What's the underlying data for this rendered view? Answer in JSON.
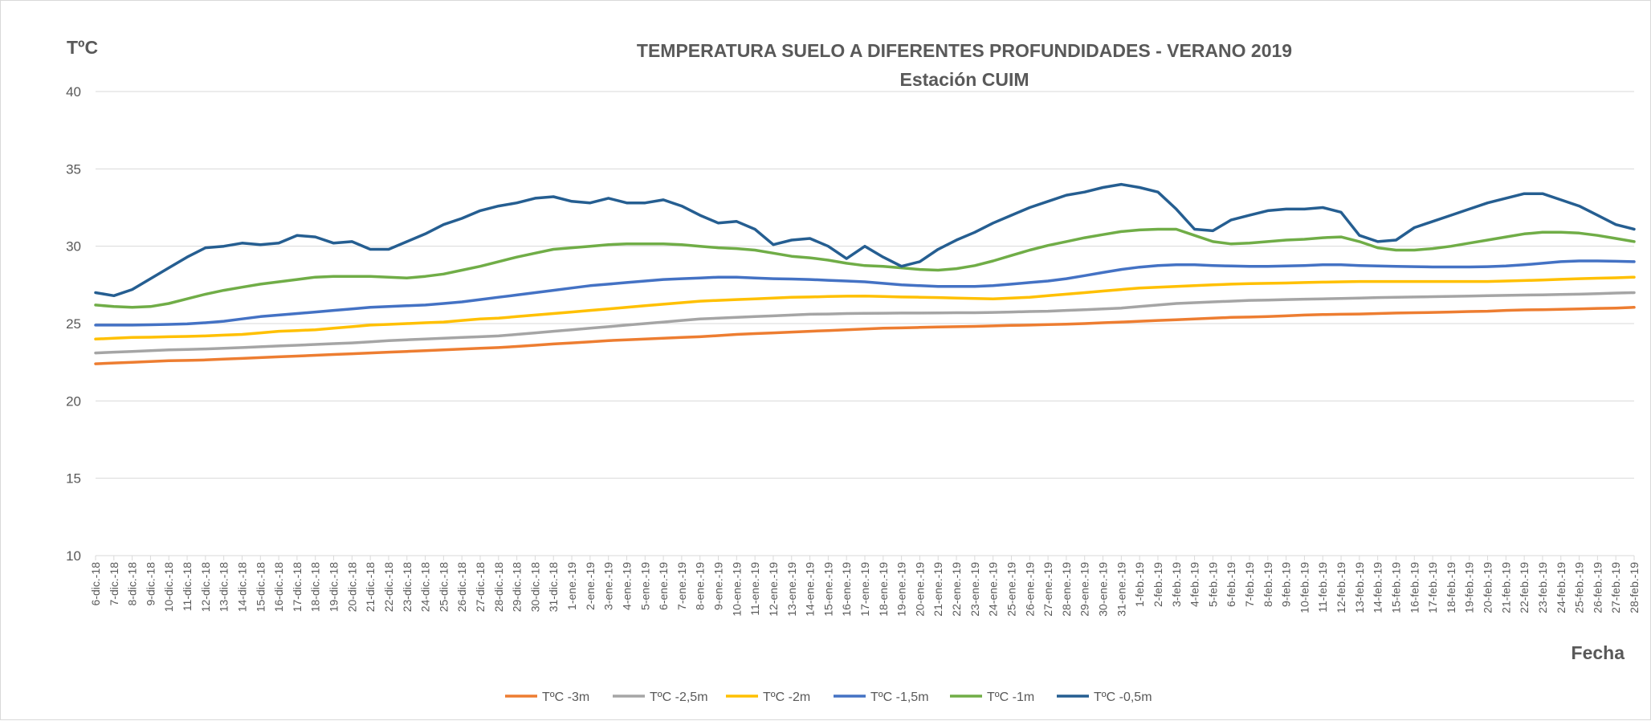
{
  "chart_data": {
    "type": "line",
    "title": "TEMPERATURA  SUELO A DIFERENTES PROFUNDIDADES -  VERANO 2019",
    "subtitle": "Estación CUIM",
    "ylabel": "TºC",
    "xlabel": "Fecha",
    "ylim": [
      10,
      40
    ],
    "yticks": [
      10,
      15,
      20,
      25,
      30,
      35,
      40
    ],
    "grid": true,
    "legend_position": "bottom",
    "categories": [
      "6-dic.-18",
      "7-dic.-18",
      "8-dic.-18",
      "9-dic.-18",
      "10-dic.-18",
      "11-dic.-18",
      "12-dic.-18",
      "13-dic.-18",
      "14-dic.-18",
      "15-dic.-18",
      "16-dic.-18",
      "17-dic.-18",
      "18-dic.-18",
      "19-dic.-18",
      "20-dic.-18",
      "21-dic.-18",
      "22-dic.-18",
      "23-dic.-18",
      "24-dic.-18",
      "25-dic.-18",
      "26-dic.-18",
      "27-dic.-18",
      "28-dic.-18",
      "29-dic.-18",
      "30-dic.-18",
      "31-dic.-18",
      "1-ene.-19",
      "2-ene.-19",
      "3-ene.-19",
      "4-ene.-19",
      "5-ene.-19",
      "6-ene.-19",
      "7-ene.-19",
      "8-ene.-19",
      "9-ene.-19",
      "10-ene.-19",
      "11-ene.-19",
      "12-ene.-19",
      "13-ene.-19",
      "14-ene.-19",
      "15-ene.-19",
      "16-ene.-19",
      "17-ene.-19",
      "18-ene.-19",
      "19-ene.-19",
      "20-ene.-19",
      "21-ene.-19",
      "22-ene.-19",
      "23-ene.-19",
      "24-ene.-19",
      "25-ene.-19",
      "26-ene.-19",
      "27-ene.-19",
      "28-ene.-19",
      "29-ene.-19",
      "30-ene.-19",
      "31-ene.-19",
      "1-feb.-19",
      "2-feb.-19",
      "3-feb.-19",
      "4-feb.-19",
      "5-feb.-19",
      "6-feb.-19",
      "7-feb.-19",
      "8-feb.-19",
      "9-feb.-19",
      "10-feb.-19",
      "11-feb.-19",
      "12-feb.-19",
      "13-feb.-19",
      "14-feb.-19",
      "15-feb.-19",
      "16-feb.-19",
      "17-feb.-19",
      "18-feb.-19",
      "19-feb.-19",
      "20-feb.-19",
      "21-feb.-19",
      "22-feb.-19",
      "23-feb.-19",
      "24-feb.-19",
      "25-feb.-19",
      "26-feb.-19",
      "27-feb.-19",
      "28-feb.-19"
    ],
    "series": [
      {
        "name": "TºC -3m",
        "color": "#ED7D31",
        "values": [
          22.4,
          22.45,
          22.5,
          22.55,
          22.6,
          22.62,
          22.65,
          22.7,
          22.75,
          22.8,
          22.85,
          22.9,
          22.95,
          23.0,
          23.05,
          23.1,
          23.15,
          23.2,
          23.25,
          23.3,
          23.35,
          23.4,
          23.45,
          23.52,
          23.6,
          23.68,
          23.75,
          23.82,
          23.9,
          23.95,
          24.0,
          24.05,
          24.1,
          24.15,
          24.22,
          24.3,
          24.35,
          24.4,
          24.45,
          24.5,
          24.55,
          24.6,
          24.65,
          24.7,
          24.72,
          24.75,
          24.78,
          24.8,
          24.82,
          24.85,
          24.88,
          24.9,
          24.93,
          24.96,
          25.0,
          25.05,
          25.1,
          25.15,
          25.2,
          25.25,
          25.3,
          25.35,
          25.4,
          25.42,
          25.45,
          25.5,
          25.55,
          25.58,
          25.6,
          25.62,
          25.65,
          25.68,
          25.7,
          25.72,
          25.75,
          25.78,
          25.8,
          25.85,
          25.88,
          25.9,
          25.92,
          25.95,
          25.98,
          26.0,
          26.05
        ]
      },
      {
        "name": "TºC -2,5m",
        "color": "#A5A5A5",
        "values": [
          23.1,
          23.15,
          23.2,
          23.25,
          23.3,
          23.33,
          23.36,
          23.4,
          23.45,
          23.5,
          23.55,
          23.6,
          23.65,
          23.7,
          23.75,
          23.82,
          23.9,
          23.95,
          24.0,
          24.05,
          24.1,
          24.15,
          24.2,
          24.3,
          24.4,
          24.5,
          24.6,
          24.7,
          24.8,
          24.9,
          25.0,
          25.1,
          25.2,
          25.3,
          25.35,
          25.4,
          25.45,
          25.5,
          25.55,
          25.6,
          25.62,
          25.65,
          25.66,
          25.67,
          25.68,
          25.68,
          25.69,
          25.7,
          25.7,
          25.72,
          25.75,
          25.78,
          25.8,
          25.85,
          25.9,
          25.95,
          26.0,
          26.1,
          26.2,
          26.3,
          26.35,
          26.4,
          26.45,
          26.5,
          26.52,
          26.55,
          26.58,
          26.6,
          26.62,
          26.65,
          26.68,
          26.7,
          26.72,
          26.74,
          26.76,
          26.78,
          26.8,
          26.82,
          26.84,
          26.86,
          26.88,
          26.9,
          26.93,
          26.97,
          27.0
        ]
      },
      {
        "name": "TºC -2m",
        "color": "#FFC000",
        "values": [
          24.0,
          24.05,
          24.1,
          24.12,
          24.15,
          24.17,
          24.2,
          24.25,
          24.3,
          24.4,
          24.5,
          24.55,
          24.6,
          24.7,
          24.8,
          24.9,
          24.95,
          25.0,
          25.05,
          25.1,
          25.2,
          25.3,
          25.35,
          25.45,
          25.55,
          25.65,
          25.75,
          25.85,
          25.95,
          26.05,
          26.15,
          26.25,
          26.35,
          26.45,
          26.5,
          26.55,
          26.6,
          26.65,
          26.7,
          26.72,
          26.75,
          26.77,
          26.78,
          26.75,
          26.72,
          26.7,
          26.68,
          26.65,
          26.62,
          26.6,
          26.65,
          26.7,
          26.8,
          26.9,
          27.0,
          27.1,
          27.2,
          27.3,
          27.35,
          27.4,
          27.45,
          27.5,
          27.55,
          27.58,
          27.6,
          27.62,
          27.65,
          27.68,
          27.7,
          27.72,
          27.72,
          27.72,
          27.72,
          27.72,
          27.72,
          27.72,
          27.72,
          27.75,
          27.78,
          27.82,
          27.86,
          27.9,
          27.93,
          27.96,
          28.0
        ]
      },
      {
        "name": "TºC -1,5m",
        "color": "#4472C4",
        "values": [
          24.9,
          24.9,
          24.9,
          24.92,
          24.95,
          24.98,
          25.05,
          25.15,
          25.3,
          25.45,
          25.55,
          25.65,
          25.75,
          25.85,
          25.95,
          26.05,
          26.1,
          26.15,
          26.2,
          26.3,
          26.4,
          26.55,
          26.7,
          26.85,
          27.0,
          27.15,
          27.3,
          27.45,
          27.55,
          27.65,
          27.75,
          27.85,
          27.9,
          27.95,
          28.0,
          28.0,
          27.95,
          27.9,
          27.88,
          27.85,
          27.8,
          27.75,
          27.7,
          27.6,
          27.5,
          27.45,
          27.4,
          27.4,
          27.4,
          27.45,
          27.55,
          27.65,
          27.75,
          27.9,
          28.1,
          28.3,
          28.5,
          28.65,
          28.75,
          28.8,
          28.8,
          28.75,
          28.72,
          28.7,
          28.7,
          28.72,
          28.75,
          28.8,
          28.8,
          28.75,
          28.72,
          28.7,
          28.68,
          28.66,
          28.66,
          28.66,
          28.68,
          28.72,
          28.8,
          28.9,
          29.0,
          29.05,
          29.05,
          29.03,
          29.0
        ]
      },
      {
        "name": "TºC -1m",
        "color": "#70AD47",
        "values": [
          26.2,
          26.1,
          26.05,
          26.1,
          26.3,
          26.6,
          26.9,
          27.15,
          27.35,
          27.55,
          27.7,
          27.85,
          28.0,
          28.05,
          28.05,
          28.05,
          28.0,
          27.95,
          28.05,
          28.2,
          28.45,
          28.7,
          29.0,
          29.3,
          29.55,
          29.8,
          29.9,
          30.0,
          30.1,
          30.15,
          30.15,
          30.15,
          30.1,
          30.0,
          29.9,
          29.85,
          29.75,
          29.55,
          29.35,
          29.25,
          29.1,
          28.9,
          28.75,
          28.7,
          28.6,
          28.5,
          28.45,
          28.55,
          28.75,
          29.05,
          29.4,
          29.75,
          30.05,
          30.3,
          30.55,
          30.75,
          30.95,
          31.05,
          31.1,
          31.1,
          30.7,
          30.3,
          30.15,
          30.2,
          30.3,
          30.4,
          30.45,
          30.55,
          30.6,
          30.3,
          29.9,
          29.75,
          29.75,
          29.85,
          30.0,
          30.2,
          30.4,
          30.6,
          30.8,
          30.9,
          30.9,
          30.85,
          30.7,
          30.5,
          30.3
        ]
      },
      {
        "name": "TºC -0,5m",
        "color": "#255E91",
        "values": [
          27.0,
          26.8,
          27.2,
          27.9,
          28.6,
          29.3,
          29.9,
          30.0,
          30.2,
          30.1,
          30.2,
          30.7,
          30.6,
          30.2,
          30.3,
          29.8,
          29.8,
          30.3,
          30.8,
          31.4,
          31.8,
          32.3,
          32.6,
          32.8,
          33.1,
          33.2,
          32.9,
          32.8,
          33.1,
          32.8,
          32.8,
          33.0,
          32.6,
          32.0,
          31.5,
          31.6,
          31.1,
          30.1,
          30.4,
          30.5,
          30.0,
          29.2,
          30.0,
          29.3,
          28.7,
          29.0,
          29.8,
          30.4,
          30.9,
          31.5,
          32.0,
          32.5,
          32.9,
          33.3,
          33.5,
          33.8,
          34.0,
          33.8,
          33.5,
          32.4,
          31.1,
          31.0,
          31.7,
          32.0,
          32.3,
          32.4,
          32.4,
          32.5,
          32.2,
          30.7,
          30.3,
          30.4,
          31.2,
          31.6,
          32.0,
          32.4,
          32.8,
          33.1,
          33.4,
          33.4,
          33.0,
          32.6,
          32.0,
          31.4,
          31.1
        ]
      }
    ]
  }
}
